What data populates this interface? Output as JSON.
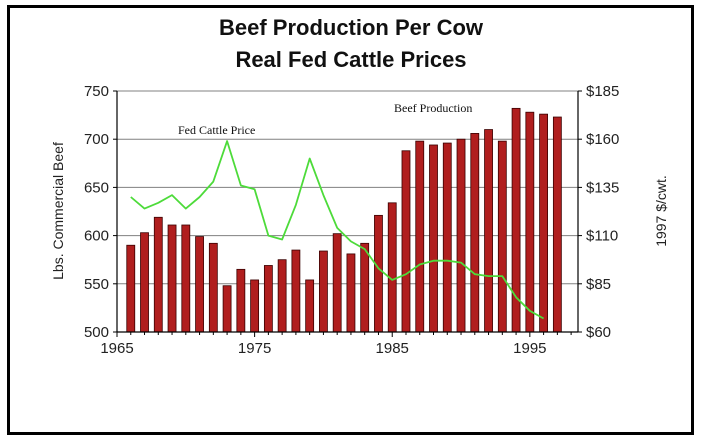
{
  "title_line1": "Beef Production Per Cow",
  "title_line2": "Real Fed Cattle Prices",
  "colors": {
    "bar_fill": "#b01e1e",
    "bar_stroke": "#3a0000",
    "line": "#4ddb3a",
    "grid": "#808080"
  },
  "chart_data": {
    "type": "bar",
    "title": "Beef Production Per Cow / Real Fed Cattle Prices",
    "xlabel": "",
    "ylabel": "Lbs. Commercial Beef",
    "y2label": "1997 $/cwt.",
    "x_ticks": [
      "1965",
      "1975",
      "1985",
      "1995"
    ],
    "y_ticks": [
      "500",
      "550",
      "600",
      "650",
      "700",
      "750"
    ],
    "y2_ticks": [
      "$60",
      "$85",
      "$110",
      "$135",
      "$160",
      "$185"
    ],
    "ylim": [
      500,
      750
    ],
    "y2lim": [
      60,
      185
    ],
    "xlim": [
      1965,
      1998.5
    ],
    "grid": true,
    "annotations": [
      "Fed Cattle Price",
      "Beef Production"
    ],
    "series": [
      {
        "name": "Beef Production",
        "kind": "bar",
        "x": [
          1966,
          1967,
          1968,
          1969,
          1970,
          1971,
          1972,
          1973,
          1974,
          1975,
          1976,
          1977,
          1978,
          1979,
          1980,
          1981,
          1982,
          1983,
          1984,
          1985,
          1986,
          1987,
          1988,
          1989,
          1990,
          1991,
          1992,
          1993,
          1994,
          1995,
          1996,
          1997
        ],
        "values": [
          590,
          603,
          619,
          611,
          611,
          599,
          592,
          548,
          565,
          554,
          569,
          575,
          585,
          554,
          584,
          602,
          581,
          592,
          621,
          634,
          688,
          698,
          694,
          696,
          700,
          706,
          710,
          698,
          732,
          728,
          726,
          723
        ]
      },
      {
        "name": "Fed Cattle Price",
        "kind": "line",
        "axis": "right",
        "x": [
          1966,
          1967,
          1968,
          1969,
          1970,
          1971,
          1972,
          1973,
          1974,
          1975,
          1976,
          1977,
          1978,
          1979,
          1980,
          1981,
          1982,
          1983,
          1984,
          1985,
          1986,
          1987,
          1988,
          1989,
          1990,
          1991,
          1992,
          1993,
          1994,
          1995,
          1996
        ],
        "values": [
          130,
          124,
          127,
          131,
          124,
          130,
          138,
          159,
          136,
          134,
          110,
          108,
          126,
          150,
          131,
          114,
          107,
          103,
          93,
          87,
          90,
          95,
          97,
          97,
          96,
          90,
          89,
          89,
          78,
          71,
          67
        ]
      }
    ]
  }
}
